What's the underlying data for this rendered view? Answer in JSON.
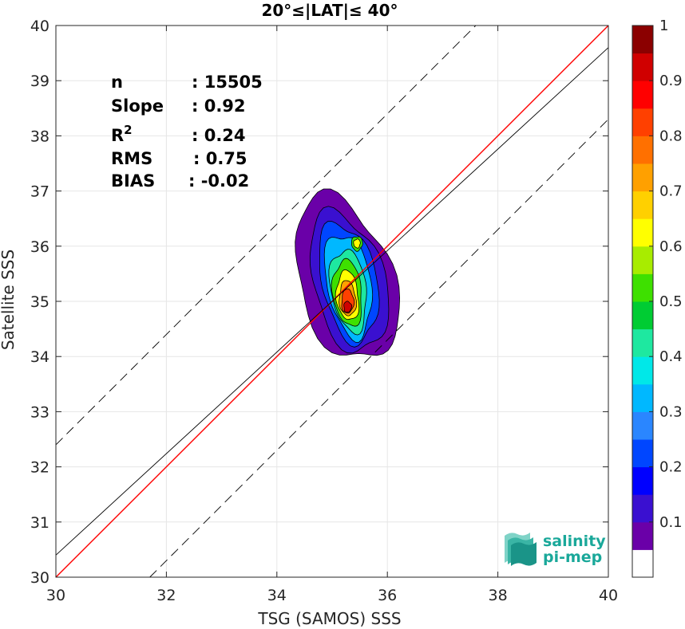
{
  "chart_data": {
    "type": "scatter",
    "subtype": "density-contour",
    "title": "20°≤|LAT|≤ 40°",
    "xlabel": "TSG (SAMOS) SSS",
    "ylabel": "Satellite SSS",
    "xlim": [
      30,
      40
    ],
    "ylim": [
      30,
      40
    ],
    "xticks": [
      30,
      32,
      34,
      36,
      38,
      40
    ],
    "yticks": [
      30,
      31,
      32,
      33,
      34,
      35,
      36,
      37,
      38,
      39,
      40
    ],
    "grid": true,
    "stats": [
      {
        "label": "n",
        "value": ": 15505"
      },
      {
        "label": "Slope",
        "value": ": 0.92"
      },
      {
        "label": "R",
        "sup": "2",
        "value": ": 0.24"
      },
      {
        "label": "RMS",
        "value": ": 0.75"
      },
      {
        "label": "BIAS",
        "value": ": -0.02"
      }
    ],
    "lines": [
      {
        "kind": "one-to-one",
        "color": "#ff0000",
        "slope": 1.0,
        "intercept": 0.0
      },
      {
        "kind": "regression",
        "color": "#000000",
        "slope": 0.92,
        "intercept": 2.8
      },
      {
        "kind": "upper-bound-dashed",
        "color": "#000000",
        "slope": 1.0,
        "intercept": 2.4
      },
      {
        "kind": "lower-bound-dashed",
        "color": "#000000",
        "slope": 1.0,
        "intercept": -1.7
      }
    ],
    "density_contours": [
      {
        "level": 0.05,
        "center": [
          35.25,
          35.4
        ],
        "rx": 0.85,
        "ry": 1.55,
        "rot": 18
      },
      {
        "level": 0.1,
        "center": [
          35.3,
          35.35
        ],
        "rx": 0.65,
        "ry": 1.3,
        "rot": 15
      },
      {
        "level": 0.2,
        "center": [
          35.3,
          35.35
        ],
        "rx": 0.5,
        "ry": 1.1,
        "rot": 12
      },
      {
        "level": 0.3,
        "center": [
          35.3,
          35.3
        ],
        "rx": 0.4,
        "ry": 0.95,
        "rot": 10
      },
      {
        "level": 0.4,
        "center": [
          35.3,
          35.2
        ],
        "rx": 0.32,
        "ry": 0.75,
        "rot": 8
      },
      {
        "level": 0.5,
        "center": [
          35.28,
          35.15
        ],
        "rx": 0.26,
        "ry": 0.6,
        "rot": 6
      },
      {
        "level": 0.6,
        "center": [
          35.28,
          35.1
        ],
        "rx": 0.2,
        "ry": 0.45,
        "rot": 5
      },
      {
        "level": 0.7,
        "center": [
          35.28,
          35.05
        ],
        "rx": 0.15,
        "ry": 0.32,
        "rot": 4
      },
      {
        "level": 0.8,
        "center": [
          35.28,
          35.0
        ],
        "rx": 0.11,
        "ry": 0.22,
        "rot": 0
      },
      {
        "level": 0.9,
        "center": [
          35.28,
          34.9
        ],
        "rx": 0.07,
        "ry": 0.1,
        "rot": 0
      }
    ],
    "secondary_peak": [
      {
        "level": 0.5,
        "center": [
          35.45,
          36.05
        ],
        "rx": 0.1,
        "ry": 0.13
      },
      {
        "level": 0.6,
        "center": [
          35.45,
          36.05
        ],
        "rx": 0.06,
        "ry": 0.08
      }
    ],
    "colorbar": {
      "ticks": [
        "0.1",
        "0.2",
        "0.3",
        "0.4",
        "0.5",
        "0.6",
        "0.7",
        "0.8",
        "0.9",
        "1"
      ],
      "colors": [
        "#ffffff",
        "#6a00a8",
        "#3a10d0",
        "#0000ff",
        "#0046ff",
        "#2a86ff",
        "#00b8ff",
        "#00e8e8",
        "#1ee8a0",
        "#00cc33",
        "#3ee000",
        "#a8ec00",
        "#ffff00",
        "#ffd000",
        "#ffa000",
        "#ff7000",
        "#ff4000",
        "#ff0000",
        "#d00000",
        "#8b0000"
      ],
      "range": [
        0,
        1
      ]
    }
  },
  "logo": {
    "line1": "salinity",
    "line2": "pi-mep",
    "color": "#1aa89a"
  }
}
